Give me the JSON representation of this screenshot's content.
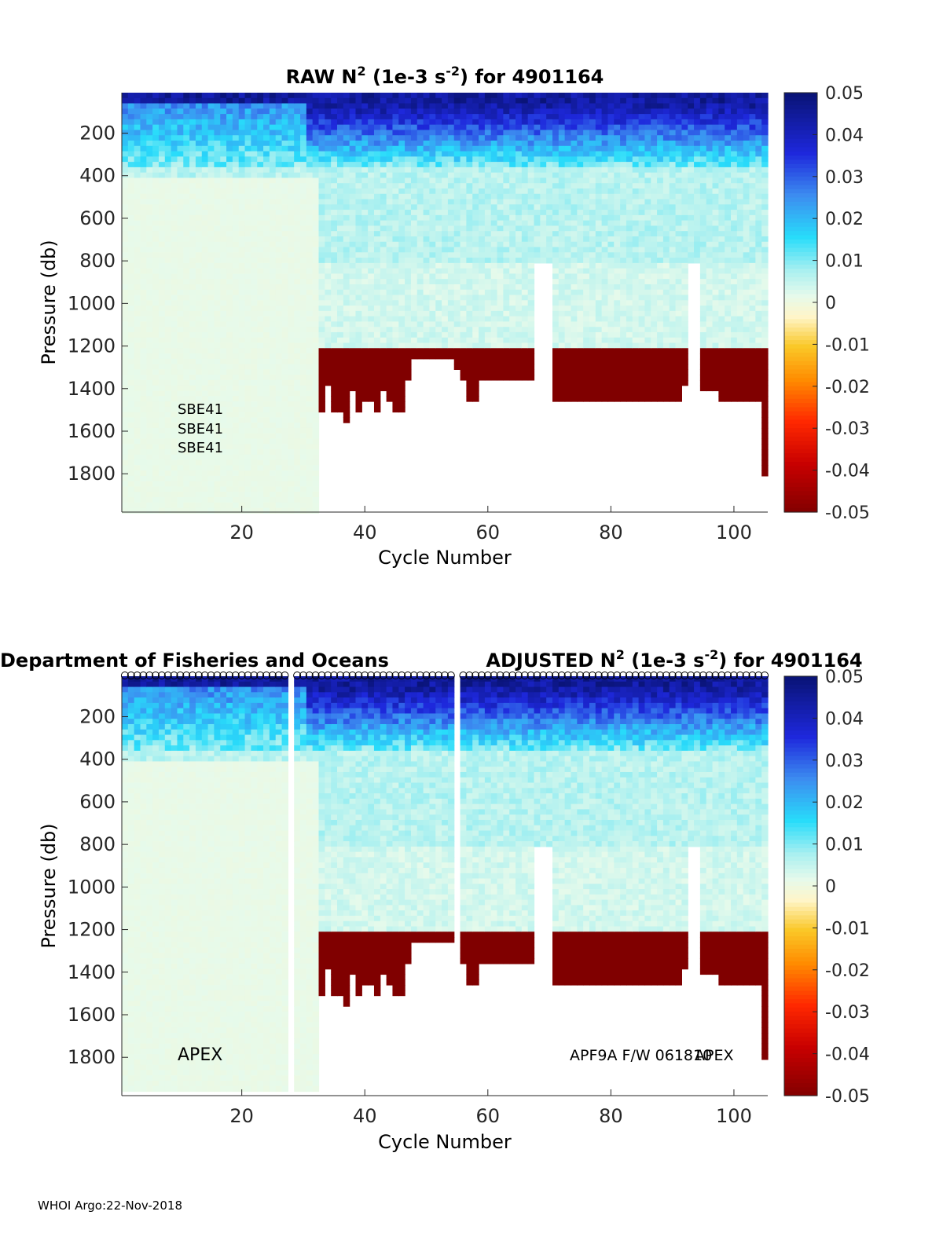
{
  "footer": "WHOI Argo:22-Nov-2018",
  "institution": "Department of Fisheries and Oceans",
  "chart_data": [
    {
      "type": "heatmap",
      "title": {
        "prefix": "RAW N",
        "sup1": "2",
        "mid": " (1e-3 s",
        "sup2": "-2",
        "suffix": ") for 4901164"
      },
      "xlabel": "Cycle Number",
      "ylabel": "Pressure (db)",
      "xlim": [
        1,
        105
      ],
      "ylim": [
        1980,
        10
      ],
      "xticks": [
        20,
        40,
        60,
        80,
        100
      ],
      "yticks": [
        200,
        400,
        600,
        800,
        1000,
        1200,
        1400,
        1600,
        1800
      ],
      "colorbar": {
        "min": -0.05,
        "max": 0.05,
        "ticks": [
          "0.05",
          "0.04",
          "0.03",
          "0.02",
          "0.01",
          "0",
          "-0.01",
          "-0.02",
          "-0.03",
          "-0.04",
          "-0.05"
        ]
      },
      "annotations": [
        "SBE41",
        "SBE41",
        "SBE41"
      ],
      "max_pressure_by_cycle": {
        "cycles_1_32": 1980,
        "cycles_33_105": [
          1500,
          1380,
          1500,
          1500,
          1560,
          1400,
          1500,
          1450,
          1460,
          1500,
          1400,
          1450,
          1500,
          1500,
          1350,
          1250,
          1250,
          1250,
          1250,
          1250,
          1250,
          1250,
          1300,
          1350,
          1450,
          1450,
          1350,
          1350,
          1350,
          1350,
          1350,
          1350,
          1350,
          1350,
          1350,
          800,
          800,
          800,
          1450,
          1450,
          1450,
          1450,
          1450,
          1450,
          1450,
          1450,
          1450,
          1450,
          1450,
          1450,
          1450,
          1450,
          1450,
          1450,
          1450,
          1450,
          1450,
          1450,
          1450,
          1380,
          800,
          800,
          1400,
          1400,
          1400,
          1450,
          1450,
          1450,
          1450,
          1450,
          1450,
          1450,
          1800
        ]
      },
      "mixed_layer_top_db": 1200
    },
    {
      "type": "heatmap",
      "title": {
        "prefix": "ADJUSTED N",
        "sup1": "2",
        "mid": " (1e-3 s",
        "sup2": "-2",
        "suffix": ") for 4901164"
      },
      "xlabel": "Cycle Number",
      "ylabel": "Pressure (db)",
      "xlim": [
        1,
        105
      ],
      "ylim": [
        1980,
        10
      ],
      "xticks": [
        20,
        40,
        60,
        80,
        100
      ],
      "yticks": [
        200,
        400,
        600,
        800,
        1000,
        1200,
        1400,
        1600,
        1800
      ],
      "colorbar": {
        "min": -0.05,
        "max": 0.05,
        "ticks": [
          "0.05",
          "0.04",
          "0.03",
          "0.02",
          "0.01",
          "0",
          "-0.01",
          "-0.02",
          "-0.03",
          "-0.04",
          "-0.05"
        ]
      },
      "annotations": [
        "APEX",
        "APF9A F/W 061810",
        "APEX"
      ],
      "missing_cycles": [
        28,
        55
      ],
      "profile_markers": "circles at top of each cycle"
    }
  ]
}
